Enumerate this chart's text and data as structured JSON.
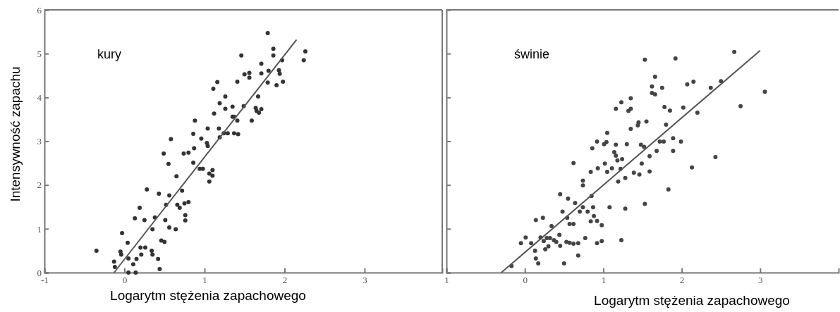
{
  "chart_data": [
    {
      "type": "scatter",
      "xlabel": "Logarytm stężenia zapachowego",
      "ylabel": "Intensywność zapachu",
      "annotations": [
        "kury"
      ],
      "xlim": [
        -1,
        3.97
      ],
      "ylim": [
        0,
        6
      ],
      "xticks": [
        -1,
        0,
        1,
        2,
        3
      ],
      "yticks": [
        0,
        1,
        2,
        3,
        4,
        5,
        6
      ],
      "grid": false,
      "marker": "circle",
      "series": [
        {
          "type": "scatter",
          "color": "#333333",
          "x": [
            -0.35,
            -0.13,
            -0.12,
            -0.05,
            -0.04,
            -0.03,
            0.04,
            0.05,
            0.05,
            0.11,
            0.13,
            0.14,
            0.15,
            0.19,
            0.2,
            0.21,
            0.25,
            0.26,
            0.28,
            0.34,
            0.35,
            0.35,
            0.38,
            0.42,
            0.43,
            0.44,
            0.46,
            0.5,
            0.49,
            0.51,
            0.52,
            0.55,
            0.56,
            0.56,
            0.58,
            0.64,
            0.65,
            0.66,
            0.69,
            0.72,
            0.74,
            0.75,
            0.76,
            0.76,
            0.8,
            0.8,
            0.86,
            0.86,
            0.87,
            0.88,
            0.94,
            0.96,
            0.98,
            1.03,
            1.04,
            1.04,
            1.06,
            1.06,
            1.1,
            1.1,
            1.11,
            1.12,
            1.16,
            1.18,
            1.19,
            1.19,
            1.24,
            1.26,
            1.26,
            1.29,
            1.35,
            1.35,
            1.37,
            1.37,
            1.41,
            1.41,
            1.42,
            1.46,
            1.49,
            1.5,
            1.56,
            1.56,
            1.59,
            1.64,
            1.65,
            1.67,
            1.68,
            1.71,
            1.71,
            1.71,
            1.79,
            1.79,
            1.8,
            1.86,
            1.86,
            1.9,
            1.93,
            1.94,
            1.98,
            1.97,
            2.24,
            2.26
          ],
          "values": [
            0.5,
            0.25,
            0.13,
            0.48,
            0.41,
            0.9,
            0.68,
            0.32,
            0,
            0.19,
            1.24,
            0,
            0.31,
            1.48,
            0.57,
            0.41,
            1.2,
            0.57,
            1.9,
            0.5,
            0.41,
            0.99,
            1.26,
            0.31,
            1.8,
            0.08,
            0.73,
            0.7,
            2.72,
            1.2,
            1.55,
            2.48,
            1.76,
            1.03,
            3.05,
            0.99,
            2.2,
            1.55,
            1.48,
            1.87,
            2.72,
            1.58,
            1.31,
            1.19,
            1.61,
            2.74,
            3.17,
            2.51,
            2.84,
            3.47,
            2.37,
            3.06,
            2.37,
            2.96,
            2.89,
            3.29,
            2.26,
            2.08,
            2.34,
            2.21,
            4.2,
            3.63,
            4.35,
            3.29,
            3.09,
            3.87,
            3.18,
            4.02,
            3.74,
            3.18,
            3.79,
            3.56,
            3.56,
            3.18,
            3.47,
            4.36,
            3.16,
            4.96,
            3.8,
            4.53,
            4.56,
            4.45,
            3.47,
            3.76,
            3.69,
            4.02,
            3.65,
            4.77,
            3.73,
            4.55,
            4.34,
            5.47,
            4.61,
            5.11,
            4.96,
            4.28,
            4.62,
            4.54,
            4.36,
            4.85,
            4.85,
            5.05
          ]
        },
        {
          "type": "line",
          "color": "#555555",
          "marker": "none",
          "x": [
            -0.13,
            2.15
          ],
          "values": [
            0,
            5.32
          ]
        }
      ]
    },
    {
      "type": "scatter",
      "xlabel": "Logarytm stężenia zapachowego",
      "annotations": [
        "świnie"
      ],
      "xlim": [
        -1,
        4
      ],
      "ylim": [
        0,
        6
      ],
      "xticks": [
        {
          "value": -1,
          "label": "1"
        },
        0,
        1,
        2,
        3
      ],
      "yticks": [
        {
          "value": 0,
          "label": null
        },
        {
          "value": 1,
          "label": null
        },
        {
          "value": 2,
          "label": null
        },
        {
          "value": 3,
          "label": null
        },
        {
          "value": 4,
          "label": null
        },
        {
          "value": 5,
          "label": null
        },
        {
          "value": 6,
          "label": null
        }
      ],
      "tick_labels": "x",
      "grid": false,
      "marker": "circle",
      "series": [
        {
          "type": "scatter",
          "color": "#444444",
          "x": [
            1.53,
            1.92,
            2.67,
            1.66,
            2.15,
            2.07,
            1.75,
            1.62,
            1.62,
            1.66,
            2.37,
            2.5,
            3.06,
            1.35,
            1.23,
            1.16,
            1.32,
            1.35,
            1.78,
            1.85,
            2.02,
            2.75,
            2.2,
            1.45,
            1.55,
            1.44,
            1.35,
            1.8,
            1.05,
            0.92,
            1.04,
            1.01,
            0.86,
            1.16,
            1.3,
            1.48,
            1.52,
            1.72,
            1.77,
            1.89,
            1.99,
            1.68,
            1.89,
            1.14,
            1.16,
            1.18,
            1.24,
            0.62,
            1.02,
            1.11,
            1.22,
            0.93,
            0.84,
            1.05,
            1.59,
            1.49,
            1.59,
            1.39,
            1.46,
            1.28,
            1.19,
            2.43,
            2.13,
            0.74,
            0.74,
            0.85,
            1.83,
            0.45,
            0.55,
            0.64,
            0.48,
            0.74,
            0.7,
            0.8,
            0.87,
            1.08,
            1.28,
            1.53,
            0.54,
            0.88,
            0.92,
            0.84,
            0.57,
            0.62,
            0.98,
            0.34,
            0.23,
            0.14,
            0.44,
            0.01,
            0.2,
            0.24,
            0.28,
            0.32,
            0.37,
            0.4,
            -0.05,
            0.08,
            0.77,
            0.53,
            0.57,
            0.62,
            0.68,
            0.45,
            0.3,
            0.26,
            0.13,
            0.92,
            0.98,
            1.23,
            0.68,
            0.14,
            0.17,
            0.5,
            -0.17
          ],
          "values": [
            4.86,
            4.89,
            5.04,
            4.47,
            4.36,
            4.3,
            4.22,
            4.25,
            4.1,
            4.07,
            4.22,
            4.37,
            4.13,
            3.98,
            3.89,
            3.74,
            3.69,
            3.74,
            3.78,
            3.7,
            3.77,
            3.8,
            3.65,
            3.43,
            3.45,
            3.36,
            3.28,
            3.38,
            3.19,
            2.99,
            2.98,
            2.93,
            2.84,
            2.92,
            2.93,
            2.92,
            2.87,
            2.99,
            2.99,
            3.07,
            2.99,
            2.78,
            2.78,
            2.75,
            2.67,
            2.56,
            2.59,
            2.5,
            2.49,
            2.38,
            2.37,
            2.38,
            2.3,
            2.3,
            2.66,
            2.49,
            2.31,
            2.28,
            2.24,
            2.16,
            2.08,
            2.64,
            2.4,
            2.1,
            1.99,
            1.75,
            1.9,
            1.79,
            1.69,
            1.59,
            1.39,
            1.49,
            1.39,
            1.39,
            1.49,
            1.49,
            1.46,
            1.57,
            1.25,
            1.29,
            1.18,
            1.17,
            1.11,
            1.11,
            1.08,
            1.06,
            1.25,
            1.2,
            0.86,
            0.8,
            0.8,
            0.72,
            0.79,
            0.79,
            0.74,
            0.7,
            0.67,
            0.67,
            0.79,
            0.7,
            0.68,
            0.66,
            0.67,
            0.61,
            0.6,
            0.53,
            0.5,
            0.67,
            0.72,
            0.74,
            0.39,
            0.32,
            0.21,
            0.21,
            0.15
          ]
        },
        {
          "type": "line",
          "color": "#555555",
          "marker": "none",
          "x": [
            -0.3,
            3.0
          ],
          "values": [
            0,
            5.07
          ]
        }
      ]
    }
  ]
}
